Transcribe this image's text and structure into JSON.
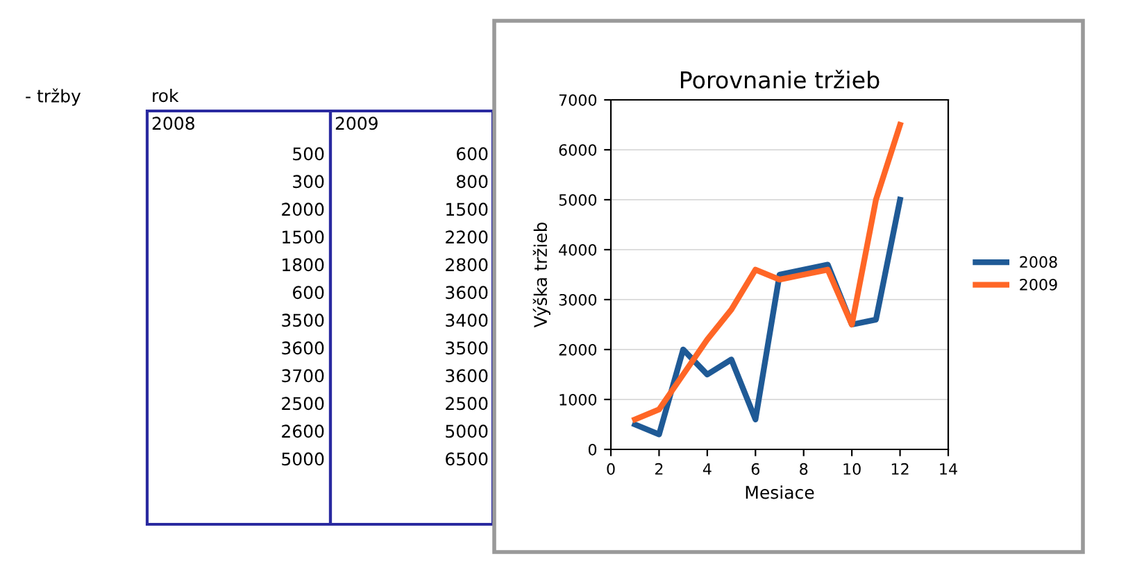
{
  "chart_data": [
    {
      "type": "other",
      "annotations": [
        "- tržby",
        "rok",
        "2008",
        "2009",
        "500",
        "600",
        "300",
        "800",
        "2000",
        "1500",
        "1500",
        "2200",
        "1800",
        "2800",
        "600",
        "3600",
        "3500",
        "3400",
        "3600",
        "3500",
        "3700",
        "3600",
        "2500",
        "2500",
        "2600",
        "5000",
        "5000",
        "6500"
      ]
    },
    {
      "type": "line",
      "title": "Porovnanie tržieb",
      "xlabel": "Mesiace",
      "ylabel": "Výška tržieb",
      "x": [
        1,
        2,
        3,
        4,
        5,
        6,
        7,
        8,
        9,
        10,
        11,
        12
      ],
      "series": [
        {
          "name": "2008",
          "color": "#1f5a96",
          "values": [
            500,
            300,
            2000,
            1500,
            1800,
            600,
            3500,
            3600,
            3700,
            2500,
            2600,
            5000
          ]
        },
        {
          "name": "2009",
          "color": "#ff6626",
          "values": [
            600,
            800,
            1500,
            2200,
            2800,
            3600,
            3400,
            3500,
            3600,
            2500,
            5000,
            6500
          ]
        }
      ],
      "xlim": [
        0,
        14
      ],
      "xticks": [
        0,
        2,
        4,
        6,
        8,
        10,
        12,
        14
      ],
      "ylim": [
        0,
        7000
      ],
      "yticks": [
        0,
        1000,
        2000,
        3000,
        4000,
        5000,
        6000,
        7000
      ],
      "grid": "y",
      "legend": "right",
      "marker": "none",
      "line_style": "solid"
    }
  ]
}
